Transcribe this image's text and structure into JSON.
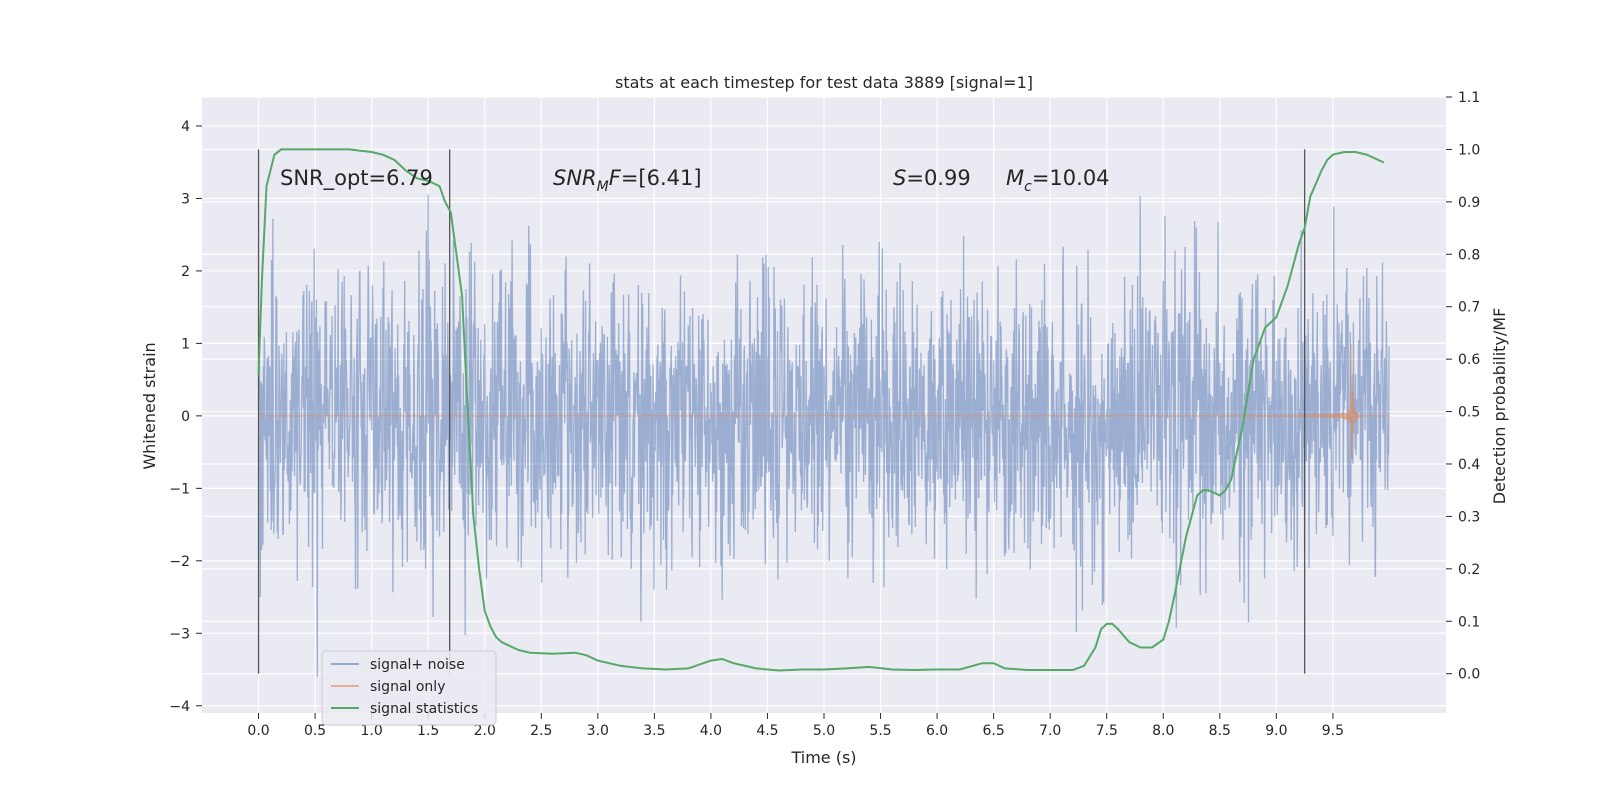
{
  "chart_data": {
    "type": "line",
    "title": "stats at each timestep for test data 3889 [signal=1]",
    "xlabel": "Time (s)",
    "ylabel": "Whitened strain",
    "y2label": "Detection probability/MF",
    "xlim": [
      -0.5,
      10.5
    ],
    "ylim": [
      -4.1,
      4.4
    ],
    "y2lim": [
      -0.075,
      1.1
    ],
    "xticks": [
      "0.0",
      "0.5",
      "1.0",
      "1.5",
      "2.0",
      "2.5",
      "3.0",
      "3.5",
      "4.0",
      "4.5",
      "5.0",
      "5.5",
      "6.0",
      "6.5",
      "7.0",
      "7.5",
      "8.0",
      "8.5",
      "9.0",
      "9.5"
    ],
    "yticks": [
      "4",
      "3",
      "2",
      "1",
      "0",
      "−1",
      "−2",
      "−3",
      "−4"
    ],
    "y2ticks": [
      "1.1",
      "1.0",
      "0.9",
      "0.8",
      "0.7",
      "0.6",
      "0.5",
      "0.4",
      "0.3",
      "0.2",
      "0.1",
      "0.0"
    ],
    "grid": true,
    "legend_position": "lower-left",
    "legend": [
      "signal+ noise",
      "signal only",
      "signal statistics"
    ],
    "annotations": {
      "snr_opt": "SNR_opt=6.79",
      "snr_mf_main": "SNR",
      "snr_mf_sub": "M",
      "snr_mf_f": "F",
      "snr_mf_val": "=[6.41]",
      "s_sym": "S",
      "s_val": "=0.99",
      "mc_main": "M",
      "mc_sub": "c",
      "mc_val": "=10.04"
    },
    "vertical_lines_x": [
      0.0,
      1.69,
      9.25
    ],
    "colors": {
      "noise": "#4c72b0",
      "signal": "#dd8452",
      "stat": "#55a868",
      "background": "#eaeaf2",
      "grid": "#ffffff",
      "vline": "#555555"
    },
    "series": [
      {
        "name": "signal statistics",
        "axis": "right",
        "x": [
          0.0,
          0.03,
          0.07,
          0.14,
          0.2,
          0.3,
          0.5,
          0.8,
          1.0,
          1.1,
          1.2,
          1.3,
          1.4,
          1.5,
          1.6,
          1.65,
          1.7,
          1.8,
          1.85,
          1.9,
          1.95,
          2.0,
          2.05,
          2.1,
          2.15,
          2.2,
          2.3,
          2.4,
          2.6,
          2.8,
          2.9,
          3.0,
          3.2,
          3.4,
          3.6,
          3.8,
          4.0,
          4.1,
          4.2,
          4.4,
          4.6,
          4.8,
          5.0,
          5.2,
          5.4,
          5.6,
          5.8,
          6.0,
          6.2,
          6.4,
          6.5,
          6.6,
          6.8,
          7.0,
          7.2,
          7.3,
          7.4,
          7.45,
          7.5,
          7.55,
          7.6,
          7.7,
          7.8,
          7.9,
          8.0,
          8.05,
          8.1,
          8.2,
          8.3,
          8.35,
          8.4,
          8.5,
          8.55,
          8.6,
          8.7,
          8.8,
          8.9,
          9.0,
          9.1,
          9.2,
          9.25,
          9.3,
          9.4,
          9.45,
          9.5,
          9.6,
          9.7,
          9.8,
          9.9,
          9.95
        ],
        "y": [
          0.57,
          0.75,
          0.93,
          0.99,
          1.0,
          1.0,
          1.0,
          1.0,
          0.995,
          0.99,
          0.98,
          0.96,
          0.945,
          0.94,
          0.93,
          0.9,
          0.88,
          0.72,
          0.5,
          0.3,
          0.2,
          0.12,
          0.09,
          0.07,
          0.06,
          0.055,
          0.045,
          0.04,
          0.038,
          0.04,
          0.035,
          0.025,
          0.015,
          0.01,
          0.008,
          0.01,
          0.025,
          0.028,
          0.02,
          0.01,
          0.006,
          0.008,
          0.008,
          0.01,
          0.013,
          0.008,
          0.007,
          0.008,
          0.008,
          0.02,
          0.02,
          0.01,
          0.007,
          0.007,
          0.007,
          0.015,
          0.05,
          0.085,
          0.095,
          0.095,
          0.085,
          0.06,
          0.05,
          0.05,
          0.065,
          0.1,
          0.15,
          0.26,
          0.34,
          0.35,
          0.35,
          0.34,
          0.35,
          0.37,
          0.47,
          0.6,
          0.66,
          0.68,
          0.74,
          0.82,
          0.85,
          0.91,
          0.96,
          0.98,
          0.99,
          0.995,
          0.995,
          0.99,
          0.98,
          0.975
        ]
      }
    ]
  }
}
